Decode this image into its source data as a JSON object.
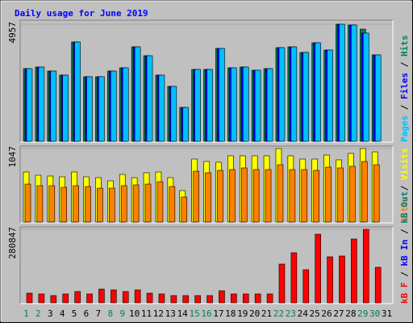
{
  "chart_data": [
    {
      "type": "bar",
      "title": "Daily usage for June 2019",
      "ylim": [
        0,
        4957
      ],
      "yticks": [
        4957
      ],
      "series": [
        {
          "name": "Hits",
          "color": "#00805c",
          "values": [
            3090,
            3158,
            2988,
            2818,
            4210,
            2750,
            2750,
            2988,
            3124,
            4006,
            3633,
            2818,
            2343,
            1460,
            3056,
            3056,
            3938,
            3124,
            3158,
            3022,
            3090,
            3972,
            4006,
            3769,
            4176,
            3871,
            4957,
            4923,
            4753,
            3667,
            null
          ]
        },
        {
          "name": "Files",
          "color": "#0000ff",
          "values": [
            3090,
            3158,
            2988,
            2818,
            4210,
            2750,
            2750,
            2988,
            3124,
            4006,
            3633,
            2818,
            2343,
            1460,
            3056,
            3056,
            3938,
            3124,
            3158,
            3022,
            3090,
            3972,
            4006,
            3769,
            4176,
            3871,
            4957,
            4923,
            4584,
            3667,
            null
          ]
        },
        {
          "name": "Pages",
          "color": "#00c0ff",
          "values": [
            3090,
            3158,
            2988,
            2818,
            4210,
            2750,
            2750,
            2988,
            3124,
            4006,
            3633,
            2818,
            2343,
            1460,
            3056,
            3056,
            3938,
            3124,
            3158,
            3022,
            3090,
            3972,
            4006,
            3769,
            4176,
            3871,
            4957,
            4923,
            4584,
            3667,
            null
          ]
        }
      ]
    },
    {
      "type": "bar",
      "ylim": [
        0,
        1047
      ],
      "yticks": [
        1047
      ],
      "series": [
        {
          "name": "Visits",
          "color": "#ffff00",
          "values": [
            717,
            671,
            660,
            649,
            717,
            649,
            637,
            592,
            683,
            637,
            706,
            717,
            637,
            455,
            899,
            865,
            854,
            945,
            945,
            945,
            945,
            1047,
            945,
            899,
            899,
            956,
            888,
            979,
            1047,
            1001,
            null
          ]
        },
        {
          "name": "Sites",
          "color": "#ff8000",
          "values": [
            546,
            524,
            524,
            501,
            524,
            512,
            489,
            489,
            524,
            535,
            546,
            580,
            512,
            364,
            728,
            706,
            740,
            751,
            774,
            751,
            751,
            819,
            751,
            751,
            740,
            785,
            774,
            797,
            865,
            819,
            null
          ]
        }
      ]
    },
    {
      "type": "bar",
      "ylim": [
        0,
        280847
      ],
      "yticks": [
        280847
      ],
      "categories": [
        "1",
        "2",
        "3",
        "4",
        "5",
        "6",
        "7",
        "8",
        "9",
        "10",
        "11",
        "12",
        "13",
        "14",
        "15",
        "16",
        "17",
        "18",
        "19",
        "20",
        "21",
        "22",
        "23",
        "24",
        "25",
        "26",
        "27",
        "28",
        "29",
        "30",
        "31"
      ],
      "highlight_categories": [
        0,
        1,
        7,
        8,
        14,
        15,
        21,
        22,
        28,
        29
      ],
      "highlight_color": "#00805c",
      "series": [
        {
          "name": "kB Out",
          "color": "#008080",
          "values": [
            null,
            null,
            null,
            null,
            null,
            null,
            null,
            null,
            null,
            null,
            null,
            null,
            null,
            null,
            null,
            null,
            null,
            null,
            null,
            null,
            null,
            null,
            null,
            null,
            null,
            null,
            null,
            null,
            null,
            null,
            null
          ]
        },
        {
          "name": "kB In",
          "color": "#0000ff",
          "values": [
            null,
            null,
            null,
            null,
            null,
            null,
            null,
            null,
            null,
            null,
            null,
            null,
            null,
            null,
            null,
            null,
            null,
            null,
            null,
            null,
            null,
            null,
            null,
            null,
            null,
            null,
            null,
            null,
            null,
            null,
            null
          ]
        },
        {
          "name": "kB F",
          "color": "#ff0000",
          "values": [
            39685,
            36632,
            30527,
            36632,
            45790,
            36632,
            54948,
            51895,
            45790,
            51895,
            39685,
            36632,
            30527,
            30527,
            30527,
            30527,
            48843,
            36632,
            36632,
            36632,
            36632,
            149580,
            192320,
            128214,
            262530,
            177057,
            180110,
            244215,
            280847,
            137371,
            null
          ]
        }
      ]
    }
  ],
  "legend_separator": " / "
}
